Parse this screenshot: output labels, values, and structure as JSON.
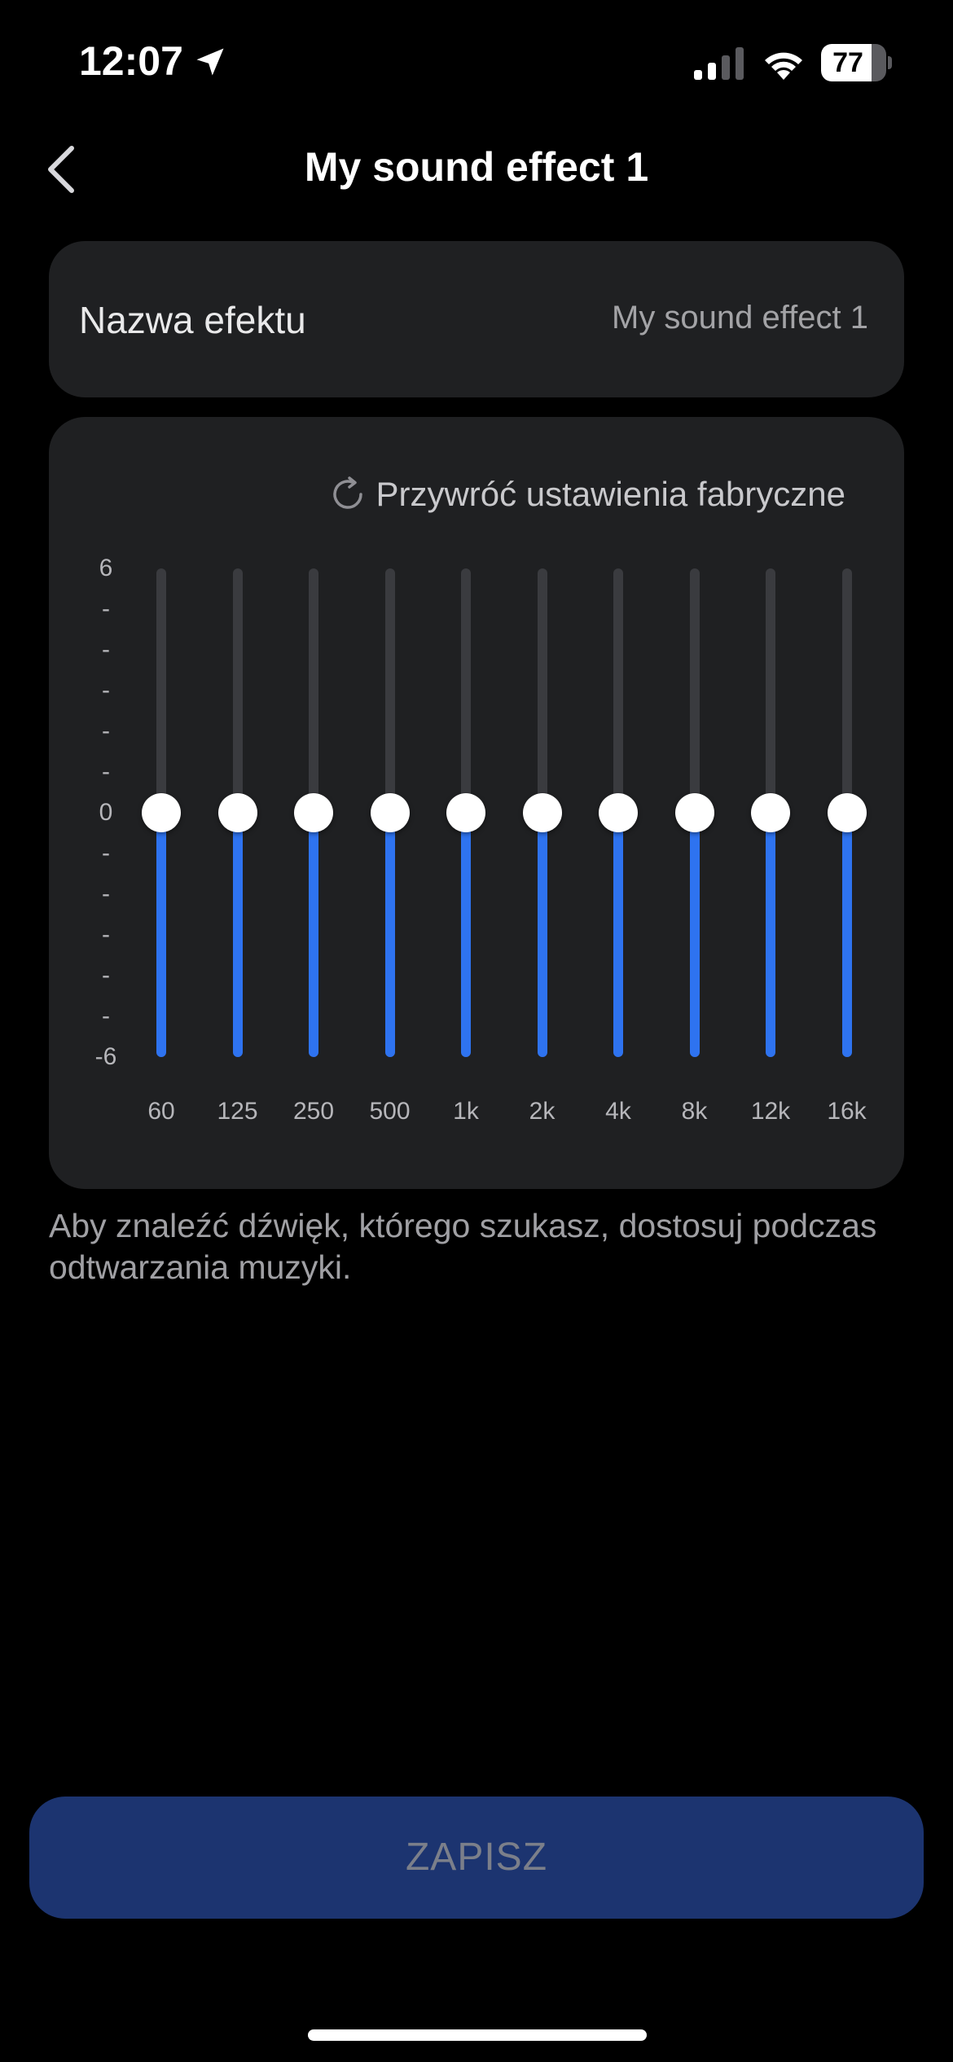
{
  "status_bar": {
    "time": "12:07",
    "battery_percent": "77",
    "battery_level": 0.77,
    "icons": [
      "location-arrow-icon",
      "cellular-signal-icon",
      "wifi-icon",
      "battery-icon"
    ]
  },
  "header": {
    "title": "My sound effect 1",
    "back_icon": "chevron-left-icon"
  },
  "effect_name": {
    "label": "Nazwa efektu",
    "value": "My sound effect 1"
  },
  "equalizer": {
    "reset_label": "Przywróć ustawienia fabryczne",
    "reset_icon": "refresh-icon",
    "y_axis": {
      "max_label": "6",
      "zero_label": "0",
      "min_label": "-6",
      "tick_label": "-",
      "range": [
        -6,
        6
      ]
    },
    "bands": [
      {
        "label": "60",
        "value": 0
      },
      {
        "label": "125",
        "value": 0
      },
      {
        "label": "250",
        "value": 0
      },
      {
        "label": "500",
        "value": 0
      },
      {
        "label": "1k",
        "value": 0
      },
      {
        "label": "2k",
        "value": 0
      },
      {
        "label": "4k",
        "value": 0
      },
      {
        "label": "8k",
        "value": 0
      },
      {
        "label": "12k",
        "value": 0
      },
      {
        "label": "16k",
        "value": 0
      }
    ],
    "colors": {
      "track": "#3a3b3f",
      "fill": "#2e73f0",
      "thumb": "#ffffff"
    }
  },
  "hint": "Aby znaleźć dźwięk, którego szukasz, dostosuj podczas odtwarzania muzyki.",
  "save_button": {
    "label": "ZAPISZ",
    "enabled": false,
    "color": "#1c3470"
  }
}
